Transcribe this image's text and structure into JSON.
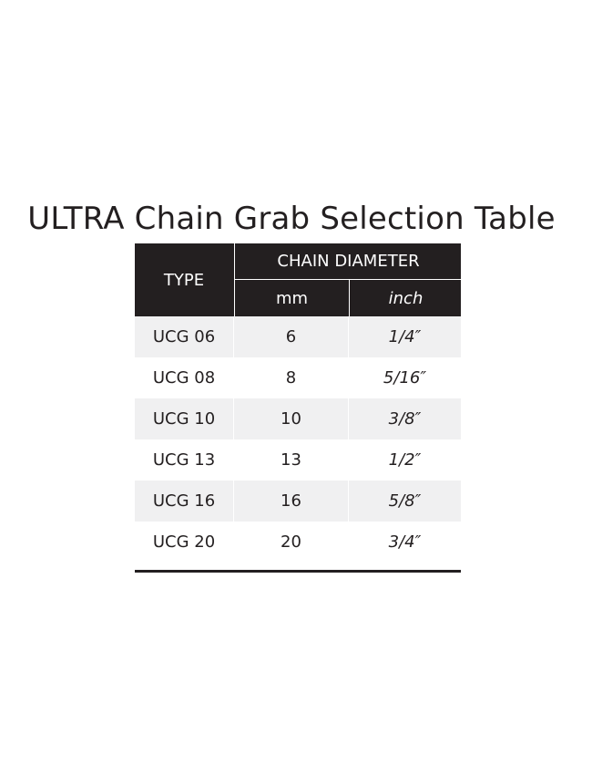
{
  "title": "ULTRA Chain Grab Selection Table",
  "header": {
    "type": "TYPE",
    "chain_diameter": "CHAIN DIAMETER",
    "mm": "mm",
    "inch": "inch"
  },
  "rows": [
    {
      "type": "UCG 06",
      "mm": "6",
      "inch": "1/4″"
    },
    {
      "type": "UCG 08",
      "mm": "8",
      "inch": "5/16″"
    },
    {
      "type": "UCG 10",
      "mm": "10",
      "inch": "3/8″"
    },
    {
      "type": "UCG 13",
      "mm": "13",
      "inch": "1/2″"
    },
    {
      "type": "UCG 16",
      "mm": "16",
      "inch": "5/8″"
    },
    {
      "type": "UCG 20",
      "mm": "20",
      "inch": "3/4″"
    }
  ],
  "colors": {
    "header_bg": "#231f20",
    "alt_row_bg": "#f0f0f1",
    "text": "#231f20"
  }
}
